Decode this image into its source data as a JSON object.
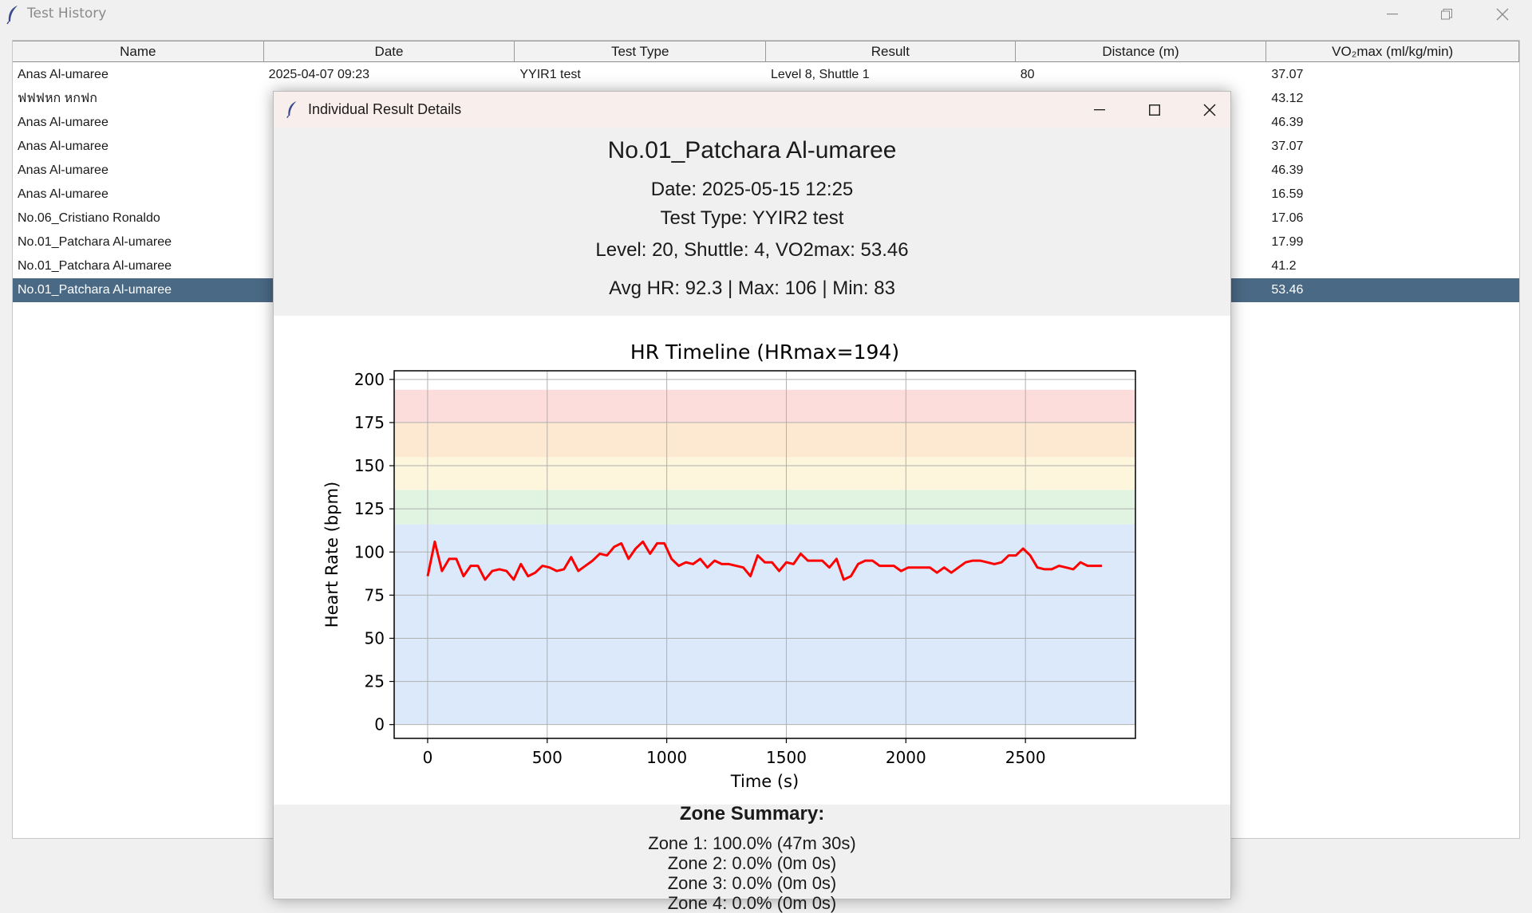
{
  "window": {
    "title": "Test History",
    "icon": "feather-icon"
  },
  "table": {
    "columns": [
      "Name",
      "Date",
      "Test Type",
      "Result",
      "Distance (m)",
      "VO₂max (ml/kg/min)"
    ],
    "rows": [
      {
        "name": "Anas Al-umaree",
        "date": "2025-04-07 09:23",
        "type": "YYIR1 test",
        "result": "Level 8, Shuttle 1",
        "distance": "80",
        "vo2": "37.07"
      },
      {
        "name": "ฟฟฟหก หกฟก",
        "date": "",
        "type": "",
        "result": "",
        "distance": "",
        "vo2": "43.12"
      },
      {
        "name": "Anas Al-umaree",
        "date": "",
        "type": "",
        "result": "",
        "distance": "",
        "vo2": "46.39"
      },
      {
        "name": "Anas Al-umaree",
        "date": "",
        "type": "",
        "result": "",
        "distance": "",
        "vo2": "37.07"
      },
      {
        "name": "Anas Al-umaree",
        "date": "",
        "type": "",
        "result": "",
        "distance": "",
        "vo2": "46.39"
      },
      {
        "name": "Anas Al-umaree",
        "date": "",
        "type": "",
        "result": "",
        "distance": "",
        "vo2": "16.59"
      },
      {
        "name": "No.06_Cristiano Ronaldo",
        "date": "",
        "type": "",
        "result": "",
        "distance": "",
        "vo2": "17.06"
      },
      {
        "name": "No.01_Patchara Al-umaree",
        "date": "",
        "type": "",
        "result": "",
        "distance": "",
        "vo2": "17.99"
      },
      {
        "name": "No.01_Patchara Al-umaree",
        "date": "",
        "type": "",
        "result": "",
        "distance": "",
        "vo2": "41.2"
      },
      {
        "name": "No.01_Patchara Al-umaree",
        "date": "",
        "type": "",
        "result": "",
        "distance": "",
        "vo2": "53.46"
      }
    ],
    "selected_index": 9,
    "selected_color": "#4a6984"
  },
  "dialog": {
    "title": "Individual Result Details",
    "athlete": "No.01_Patchara Al-umaree",
    "date_line": "Date: 2025-05-15 12:25",
    "type_line": "Test Type: YYIR2 test",
    "level_line": "Level: 20, Shuttle: 4, VO2max: 53.46",
    "hr_line": "Avg HR: 92.3 | Max: 106 | Min: 83",
    "zone_title": "Zone Summary:",
    "zones": [
      "Zone 1: 100.0% (47m 30s)",
      "Zone 2: 0.0% (0m 0s)",
      "Zone 3: 0.0% (0m 0s)",
      "Zone 4: 0.0% (0m 0s)"
    ]
  },
  "chart_data": {
    "type": "line",
    "title": "HR Timeline (HRmax=194)",
    "xlabel": "Time (s)",
    "ylabel": "Heart Rate (bpm)",
    "xlim": [
      -140,
      2960
    ],
    "ylim": [
      -8,
      205
    ],
    "xticks": [
      0,
      500,
      1000,
      1500,
      2000,
      2500
    ],
    "yticks": [
      0,
      25,
      50,
      75,
      100,
      125,
      150,
      175,
      200
    ],
    "grid": true,
    "line_color": "#ff0000",
    "zone_bands": [
      {
        "from": 0,
        "to": 116,
        "color": "#dbe9fb"
      },
      {
        "from": 116,
        "to": 136,
        "color": "#e1f3e1"
      },
      {
        "from": 136,
        "to": 155,
        "color": "#fdf6dc"
      },
      {
        "from": 155,
        "to": 175,
        "color": "#fde9d2"
      },
      {
        "from": 175,
        "to": 194,
        "color": "#fddcdc"
      }
    ],
    "series": [
      {
        "x": [
          0,
          30,
          60,
          90,
          120,
          150,
          180,
          210,
          240,
          270,
          300,
          330,
          360,
          390,
          420,
          450,
          480,
          510,
          540,
          570,
          600,
          630,
          660,
          690,
          720,
          750,
          780,
          810,
          840,
          870,
          900,
          930,
          960,
          990,
          1020,
          1050,
          1080,
          1110,
          1140,
          1170,
          1200,
          1230,
          1260,
          1290,
          1320,
          1350,
          1380,
          1410,
          1440,
          1470,
          1500,
          1530,
          1560,
          1590,
          1620,
          1650,
          1680,
          1710,
          1740,
          1770,
          1800,
          1830,
          1860,
          1890,
          1920,
          1950,
          1980,
          2010,
          2040,
          2070,
          2100,
          2130,
          2160,
          2190,
          2220,
          2250,
          2280,
          2310,
          2340,
          2370,
          2400,
          2430,
          2460,
          2490,
          2520,
          2550,
          2580,
          2610,
          2640,
          2670,
          2700,
          2730,
          2760,
          2790,
          2820
        ],
        "y": [
          86,
          106,
          89,
          96,
          96,
          86,
          92,
          92,
          84,
          89,
          90,
          89,
          84,
          93,
          86,
          88,
          92,
          91,
          89,
          90,
          97,
          89,
          92,
          95,
          99,
          98,
          103,
          105,
          96,
          102,
          106,
          99,
          105,
          105,
          96,
          92,
          94,
          93,
          96,
          91,
          95,
          93,
          93,
          92,
          91,
          86,
          98,
          94,
          94,
          89,
          94,
          93,
          99,
          95,
          95,
          95,
          91,
          96,
          84,
          86,
          93,
          95,
          95,
          92,
          92,
          92,
          89,
          91,
          91,
          91,
          91,
          88,
          91,
          88,
          91,
          94,
          95,
          95,
          94,
          93,
          94,
          98,
          98,
          102,
          98,
          91,
          90,
          90,
          92,
          91,
          90,
          94,
          92,
          92,
          92
        ]
      }
    ]
  }
}
